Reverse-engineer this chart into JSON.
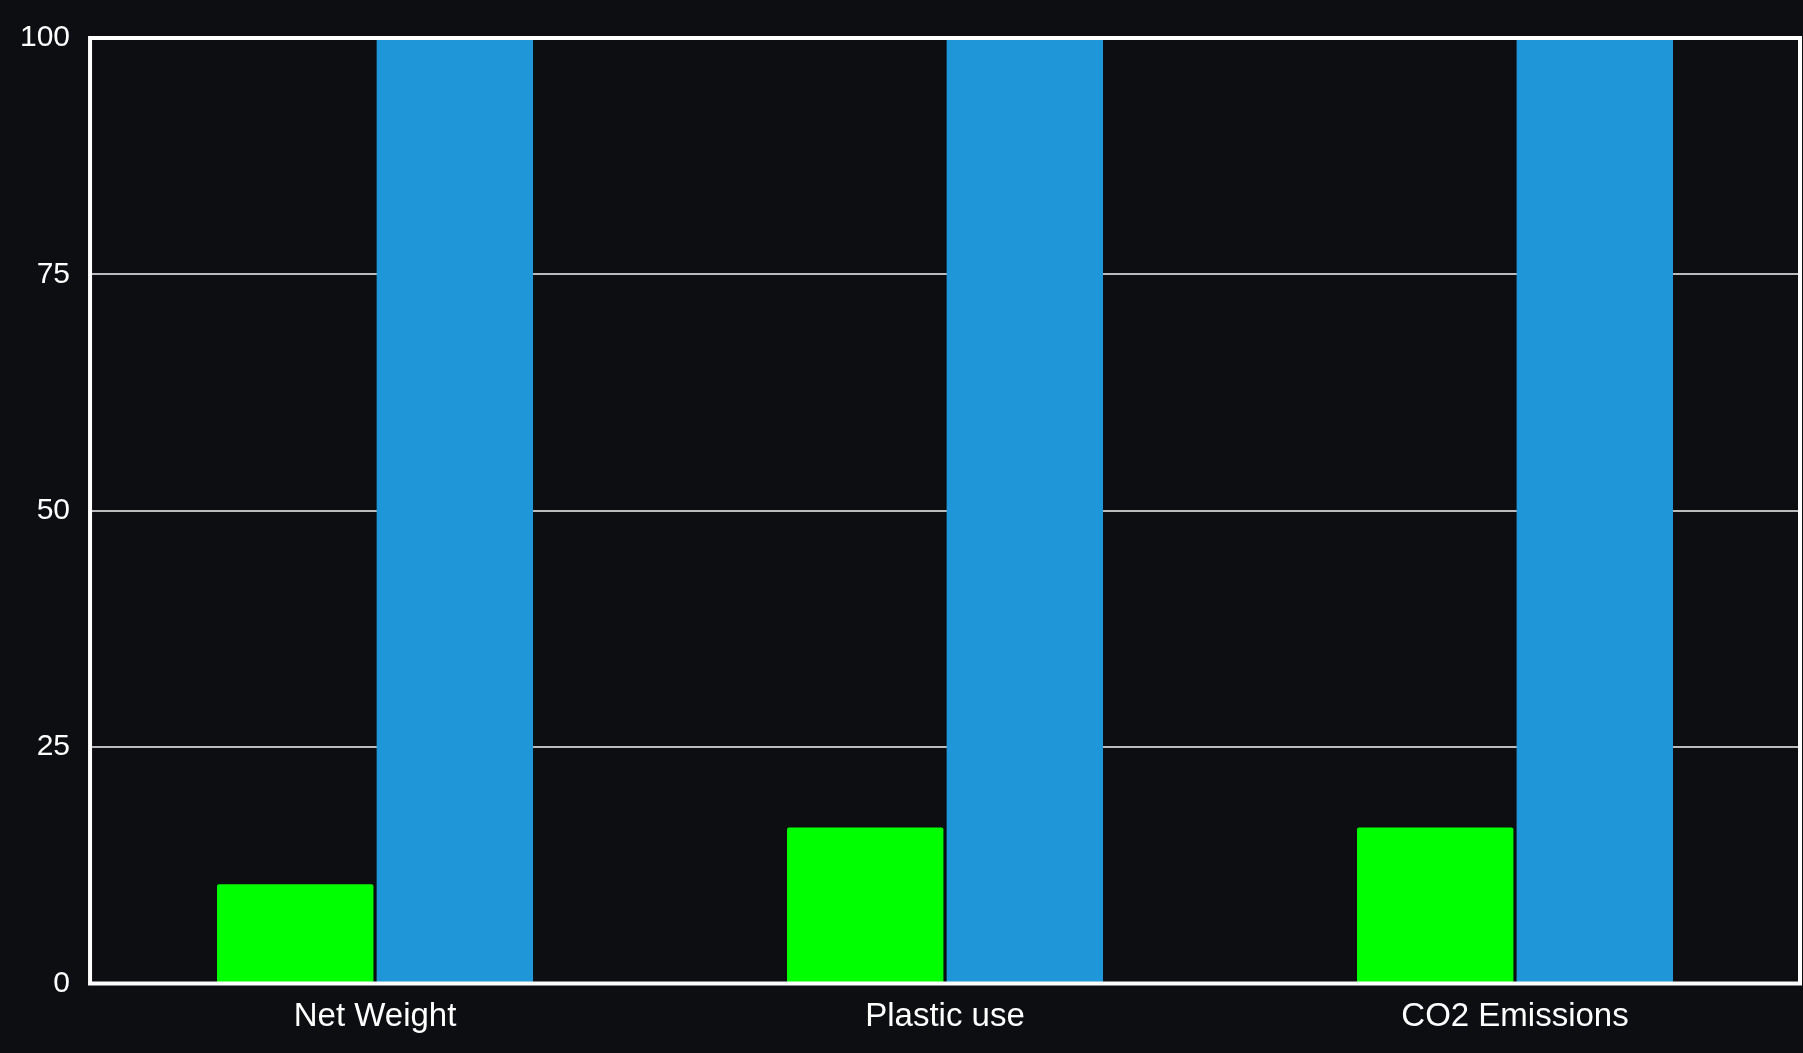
{
  "chart_data": {
    "type": "bar",
    "categories": [
      "Net Weight",
      "Plastic use",
      "CO2 Emissions"
    ],
    "series": [
      {
        "color": "#00ff00",
        "values": [
          10.5,
          16.5,
          16.5
        ]
      },
      {
        "color": "#1e96d8",
        "values": [
          100,
          100,
          100
        ]
      }
    ],
    "ylim": [
      0,
      100
    ],
    "yticks": [
      0,
      25,
      50,
      75,
      100
    ],
    "grid": "y",
    "legend": false
  }
}
